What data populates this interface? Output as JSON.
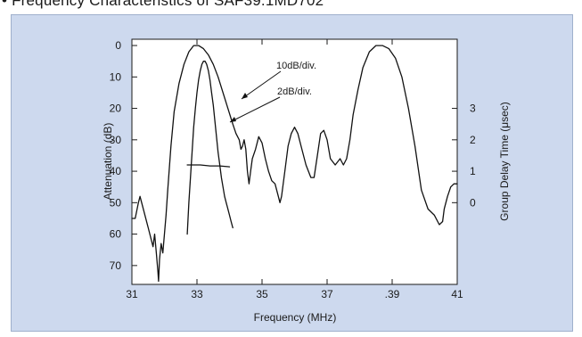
{
  "heading": "• Frequency Characteristics of SAF39.1MD702",
  "chart_data": {
    "type": "line",
    "xlabel": "Frequency (MHz)",
    "ylabel_left": "Attenuation (dB)",
    "ylabel_right": "Group Delay Time (μsec)",
    "x_ticks": [
      "31",
      "33",
      "35",
      "37",
      ".39",
      "41"
    ],
    "x_tick_values": [
      31,
      33,
      35,
      37,
      39,
      41
    ],
    "xlim": [
      31,
      41
    ],
    "y_left_ticks": [
      "0",
      "10",
      "20",
      "30",
      "40",
      "50",
      "60",
      "70"
    ],
    "y_left_tick_values": [
      0,
      10,
      20,
      30,
      40,
      50,
      60,
      70
    ],
    "ylim_left": [
      -2,
      76
    ],
    "y_right_ticks": [
      "3",
      "2",
      "1",
      "0"
    ],
    "y_right_tick_values": [
      3,
      2,
      1,
      0
    ],
    "grid": false,
    "annotations": [
      {
        "text": "10dB/div.",
        "target_series": "wide"
      },
      {
        "text": "2dB/div.",
        "target_series": "narrow"
      }
    ],
    "series": [
      {
        "x": [
          31.0,
          31.1,
          31.2,
          31.25,
          31.35,
          31.5,
          31.6,
          31.65,
          31.7,
          31.75,
          31.8,
          31.82,
          31.85,
          31.9,
          31.95,
          32.0,
          32.05,
          32.1,
          32.2,
          32.3,
          32.45,
          32.6,
          32.75,
          32.9,
          33.05,
          33.2,
          33.35,
          33.5,
          33.65,
          33.8,
          33.95,
          34.1,
          34.2,
          34.3,
          34.35,
          34.4,
          34.45,
          34.5,
          34.55,
          34.6,
          34.65,
          34.7,
          34.8,
          34.9,
          35.0,
          35.1,
          35.2,
          35.3,
          35.4,
          35.5,
          35.55,
          35.6,
          35.7,
          35.8,
          35.9,
          36.0,
          36.1,
          36.2,
          36.35,
          36.5,
          36.6,
          36.7,
          36.8,
          36.9,
          37.0,
          37.1,
          37.25,
          37.4,
          37.5,
          37.6,
          37.7,
          37.8,
          37.95,
          38.1,
          38.3,
          38.5,
          38.7,
          38.9,
          39.1,
          39.3,
          39.5,
          39.7,
          39.9,
          40.1,
          40.3,
          40.45,
          40.55,
          40.6,
          40.7,
          40.8,
          40.9,
          41.0
        ],
        "y": [
          55,
          55,
          50,
          48,
          52,
          58,
          62,
          64,
          60,
          66,
          72,
          75,
          68,
          63,
          66,
          60,
          54,
          46,
          32,
          21,
          12,
          6,
          2,
          0,
          0,
          1,
          3,
          6,
          10,
          15,
          20,
          25,
          28,
          30,
          33,
          32,
          30,
          33,
          40,
          44,
          40,
          36,
          33,
          29,
          31,
          36,
          40,
          43,
          44,
          48,
          50,
          48,
          40,
          32,
          28,
          26,
          28,
          32,
          38,
          42,
          42,
          35,
          28,
          27,
          30,
          36,
          38,
          36,
          38,
          36,
          30,
          22,
          14,
          7,
          2,
          0,
          0,
          1,
          4,
          10,
          20,
          32,
          46,
          52,
          54,
          57,
          56,
          52,
          48,
          45,
          44,
          44
        ]
      },
      {
        "x": [
          32.7,
          32.75,
          32.8,
          32.85,
          32.9,
          32.95,
          33.0,
          33.05,
          33.1,
          33.15,
          33.2,
          33.25,
          33.3,
          33.35,
          33.4,
          33.45,
          33.5,
          33.55,
          33.6,
          33.65,
          33.7,
          33.75,
          33.8,
          33.85,
          33.9,
          33.95,
          34.0,
          34.05,
          34.1
        ],
        "y": [
          60,
          50,
          42,
          34,
          26,
          20,
          15,
          11,
          8,
          6,
          5,
          5,
          6,
          8,
          11,
          15,
          19,
          24,
          29,
          34,
          38,
          42,
          45,
          48,
          50,
          52,
          54,
          56,
          58
        ]
      },
      {
        "x": [
          32.7,
          33.1,
          33.4,
          33.7,
          34.0
        ],
        "y": [
          38,
          38,
          38.3,
          38.3,
          38.6
        ]
      }
    ]
  }
}
